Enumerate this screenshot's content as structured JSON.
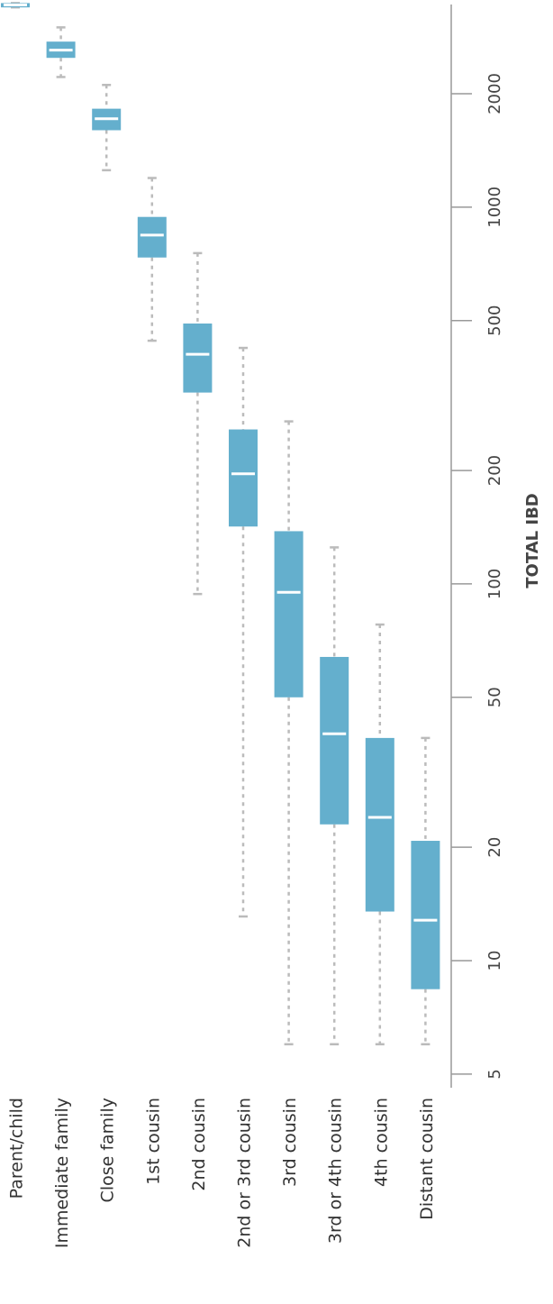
{
  "chart_data": {
    "type": "boxplot",
    "orientation": "rotated",
    "y_label": "TOTAL IBD",
    "log_scale": true,
    "color": "#64afcd",
    "median_color": "#ffffff",
    "whisker_color": "#bbbbbb",
    "categories": [
      "Parent/child",
      "Immediate family",
      "Close family",
      "1st cousin",
      "2nd cousin",
      "2nd or 3rd cousin",
      "3rd cousin",
      "3rd or 4th cousin",
      "4th cousin",
      "Distant cousin"
    ],
    "min": [
      3390,
      2215,
      1253,
      442,
      94,
      13.1,
      6,
      6,
      6,
      6
    ],
    "q1": [
      3390,
      2490,
      1600,
      735,
      322,
      142,
      50,
      23,
      13.5,
      8.4
    ],
    "median": [
      3440,
      2610,
      1717,
      843,
      407,
      196,
      95,
      40,
      24,
      12.8
    ],
    "q3": [
      3480,
      2750,
      1825,
      942,
      491,
      257,
      138,
      64,
      39,
      20.8
    ],
    "max": [
      3480,
      3000,
      2110,
      1195,
      755,
      423,
      270,
      125,
      78,
      39
    ],
    "ylim": [
      4.6,
      3450
    ],
    "yticks": [
      5,
      10,
      20,
      50,
      100,
      200,
      500,
      1000,
      2000
    ]
  }
}
